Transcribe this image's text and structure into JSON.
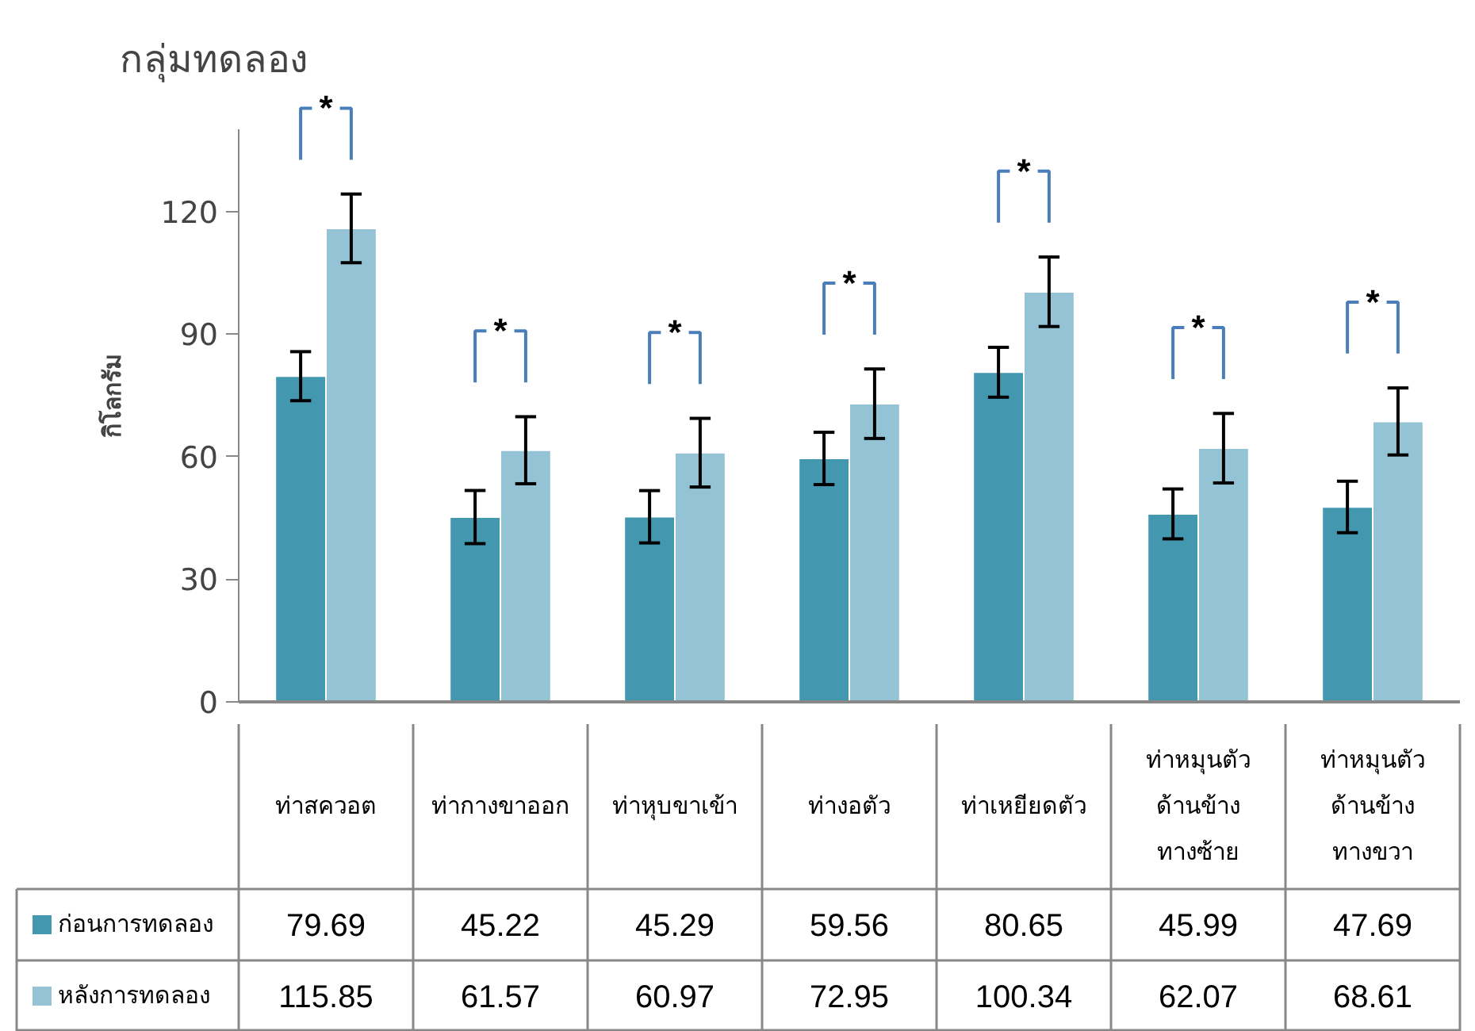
{
  "chart_data": {
    "type": "bar",
    "title": "กลุ่มทดลอง",
    "ylabel": "กิโลกรัม",
    "categories": [
      "ท่าสควอต",
      "ท่ากางขาออก",
      "ท่าหุบขาเข้า",
      "ท่างอตัว",
      "ท่าเหยียดตัว",
      "ท่าหมุนตัว ด้านข้าง ทางซ้าย",
      "ท่าหมุนตัว ด้านข้าง ทางขวา"
    ],
    "series": [
      {
        "name": "ก่อนการทดลอง",
        "color": "#4398b0",
        "values": [
          79.69,
          45.22,
          45.29,
          59.56,
          80.65,
          45.99,
          47.69
        ],
        "errors": [
          6,
          6.5,
          6.4,
          6.4,
          6.1,
          6.1,
          6.3
        ]
      },
      {
        "name": "หลังการทดลอง",
        "color": "#93c3d5",
        "values": [
          115.85,
          61.57,
          60.97,
          72.95,
          100.34,
          62.07,
          68.61
        ],
        "errors": [
          8.4,
          8.2,
          8.4,
          8.5,
          8.5,
          8.5,
          8.2
        ]
      }
    ],
    "ylim": [
      0,
      140
    ],
    "yticks": [
      0,
      30,
      60,
      90,
      120
    ],
    "grid": false,
    "legend": "bottom",
    "data_labels": true,
    "annotations": [
      "*",
      "*",
      "*",
      "*",
      "*",
      "*",
      "*"
    ]
  }
}
